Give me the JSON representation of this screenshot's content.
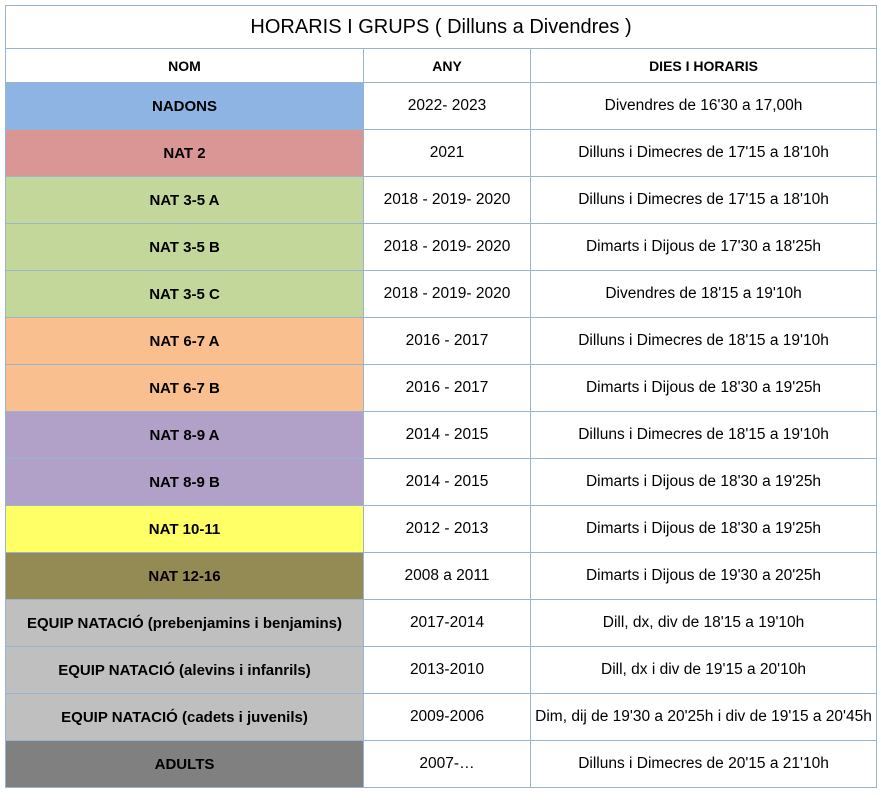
{
  "title": "HORARIS I GRUPS  ( Dilluns a Divendres )",
  "headers": {
    "nom": "NOM",
    "any": "ANY",
    "dies": "DIES I HORARIS"
  },
  "rows": [
    {
      "nom": "NADONS",
      "any": "2022- 2023",
      "dies": "Divendres de 16'30 a 17,00h",
      "color": "#8db4e2"
    },
    {
      "nom": "NAT 2",
      "any": "2021",
      "dies": "Dilluns i Dimecres de 17'15 a 18'10h",
      "color": "#da9694"
    },
    {
      "nom": "NAT 3-5 A",
      "any": "2018 - 2019- 2020",
      "dies": "Dilluns i Dimecres de 17'15 a 18'10h",
      "color": "#c4d79b"
    },
    {
      "nom": "NAT 3-5 B",
      "any": "2018 - 2019- 2020",
      "dies": "Dimarts i Dijous de 17'30 a 18'25h",
      "color": "#c4d79b"
    },
    {
      "nom": "NAT 3-5 C",
      "any": "2018 - 2019- 2020",
      "dies": "Divendres de 18'15 a 19'10h",
      "color": "#c4d79b"
    },
    {
      "nom": "NAT 6-7 A",
      "any": "2016 - 2017",
      "dies": "Dilluns i Dimecres de 18'15 a 19'10h",
      "color": "#fabf8f"
    },
    {
      "nom": "NAT 6-7 B",
      "any": "2016 - 2017",
      "dies": "Dimarts i Dijous de 18'30 a 19'25h",
      "color": "#fabf8f"
    },
    {
      "nom": "NAT 8-9 A",
      "any": "2014 - 2015",
      "dies": "Dilluns i Dimecres de 18'15 a 19'10h",
      "color": "#b1a0c7"
    },
    {
      "nom": "NAT 8-9 B",
      "any": "2014 - 2015",
      "dies": "Dimarts i Dijous de 18'30 a 19'25h",
      "color": "#b1a0c7"
    },
    {
      "nom": "NAT 10-11",
      "any": "2012 - 2013",
      "dies": "Dimarts i Dijous de 18'30 a 19'25h",
      "color": "#ffff66"
    },
    {
      "nom": "NAT 12-16",
      "any": "2008 a 2011",
      "dies": "Dimarts i Dijous de 19'30 a 20'25h",
      "color": "#948a54"
    },
    {
      "nom": "EQUIP NATACIÓ (prebenjamins i benjamins)",
      "any": "2017-2014",
      "dies": "Dill, dx, div de 18'15 a 19'10h",
      "color": "#bfbfbf"
    },
    {
      "nom": "EQUIP NATACIÓ (alevins i infanrils)",
      "any": "2013-2010",
      "dies": "Dill, dx i div de 19'15 a 20'10h",
      "color": "#bfbfbf"
    },
    {
      "nom": "EQUIP NATACIÓ (cadets i juvenils)",
      "any": "2009-2006",
      "dies": "Dim, dij de 19'30 a 20'25h i div de 19'15 a 20'45h",
      "color": "#bfbfbf"
    },
    {
      "nom": "ADULTS",
      "any": "2007-…",
      "dies": "Dilluns i Dimecres de 20'15 a 21'10h",
      "color": "#808080"
    }
  ]
}
